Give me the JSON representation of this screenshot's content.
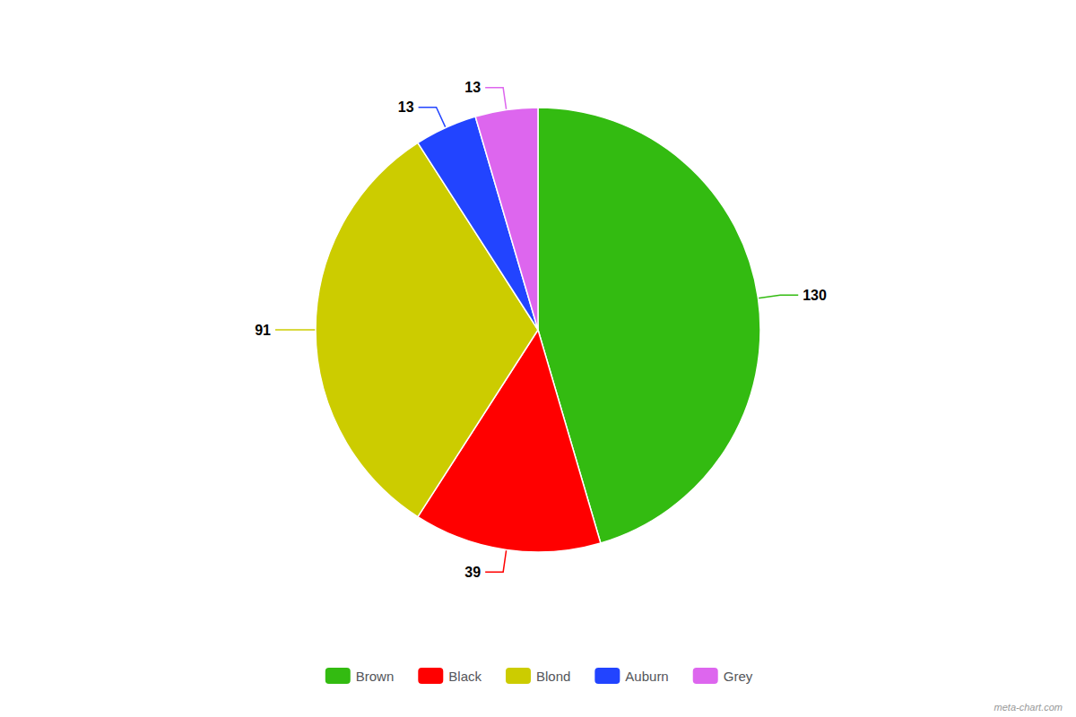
{
  "chart_data": {
    "type": "pie",
    "categories": [
      "Brown",
      "Black",
      "Blond",
      "Auburn",
      "Grey"
    ],
    "values": [
      130,
      39,
      91,
      13,
      13
    ],
    "colors": [
      "#33bb11",
      "#ff0000",
      "#cccc00",
      "#2244ff",
      "#dd66ee"
    ],
    "data_labels": true,
    "legend": "bottom",
    "annotations": [
      "meta-chart.com"
    ]
  }
}
